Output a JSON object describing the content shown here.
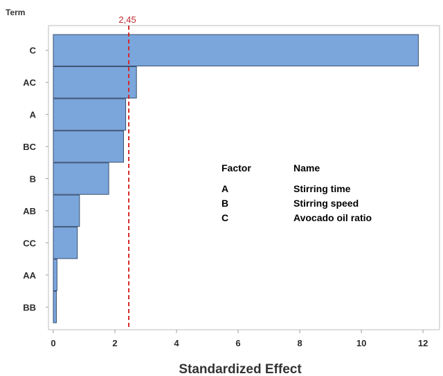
{
  "chart_data": {
    "type": "bar",
    "orientation": "horizontal",
    "ylabel": "Term",
    "xlabel": "Standardized Effect",
    "categories": [
      "C",
      "AC",
      "A",
      "BC",
      "B",
      "AB",
      "CC",
      "AA",
      "BB"
    ],
    "values": [
      11.85,
      2.7,
      2.35,
      2.28,
      1.8,
      0.85,
      0.78,
      0.12,
      0.1
    ],
    "xlim": [
      0,
      12.2
    ],
    "xticks": [
      0,
      2,
      4,
      6,
      8,
      10,
      12
    ],
    "reference_line": {
      "value": 2.45,
      "label": "2,45",
      "color": "#d42a2a"
    },
    "bar_color": "#7aa6dc",
    "bar_edge_color": "#3a4e6e",
    "grid": false,
    "legend_table": {
      "headers": [
        "Factor",
        "Name"
      ],
      "rows": [
        [
          "A",
          "Stirring time"
        ],
        [
          "B",
          "Stirring speed"
        ],
        [
          "C",
          "Avocado oil ratio"
        ]
      ]
    }
  }
}
